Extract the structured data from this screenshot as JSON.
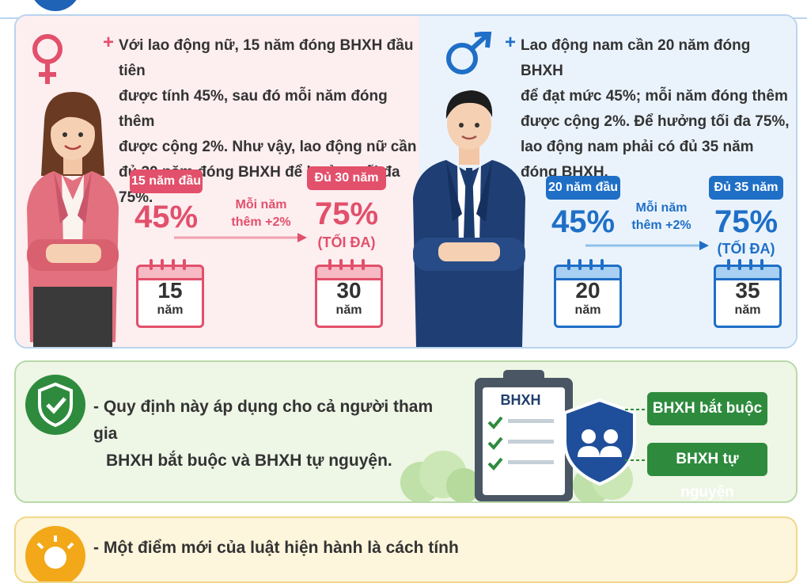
{
  "female": {
    "description": "Với lao động nữ, 15 năm đóng BHXH đầu tiên được tính 45%, sau đó mỗi năm đóng thêm được cộng 2%. Như vậy, lao động nữ cần đủ 30 năm đóng BHXH để hưởng tối đa 75%.",
    "lines": [
      "Với lao động nữ, 15 năm đóng BHXH đầu tiên",
      "được tính 45%, sau đó mỗi năm đóng thêm",
      "được cộng 2%. Như vậy, lao động nữ cần",
      "đủ 30 năm đóng BHXH để hưởng tối đa 75%."
    ],
    "start_label": "15 năm đầu",
    "start_pct": "45%",
    "step_line1": "Mỗi năm",
    "step_line2": "thêm +2%",
    "end_label": "Đủ 30 năm",
    "end_pct": "75%",
    "end_note": "(TỐI ĐA)",
    "cal_start_num": "15",
    "cal_end_num": "30",
    "unit": "năm",
    "accent": "#e2506b"
  },
  "male": {
    "lines": [
      "Lao động nam cần 20 năm đóng BHXH",
      "để đạt mức 45%; mỗi năm đóng thêm",
      "được cộng 2%. Để hưởng tối đa 75%,",
      "lao động nam phải có đủ 35 năm",
      "đóng BHXH."
    ],
    "start_label": "20 năm đầu",
    "start_pct": "45%",
    "step_line1": "Mỗi năm",
    "step_line2": "thêm +2%",
    "end_label": "Đủ 35 năm",
    "end_pct": "75%",
    "end_note": "(TỐI ĐA)",
    "cal_start_num": "20",
    "cal_end_num": "35",
    "unit": "năm",
    "accent": "#1f6fc7"
  },
  "scope": {
    "line1": "- Quy định này áp dụng cho cả người tham gia",
    "line2": "BHXH bắt buộc và BHXH tự nguyện.",
    "clipboard_title": "BHXH",
    "tag_mandatory": "BHXH bắt buộc",
    "tag_voluntary": "BHXH tự nguyện",
    "accent": "#2e8b3d"
  },
  "new_point": {
    "text": "- Một điểm mới của luật hiện hành là cách tính"
  },
  "icons": {
    "female_symbol": "female-symbol-icon",
    "male_symbol": "male-symbol-icon",
    "shield_check": "shield-check-icon",
    "users_shield": "users-shield-icon",
    "sun": "sun-icon"
  }
}
